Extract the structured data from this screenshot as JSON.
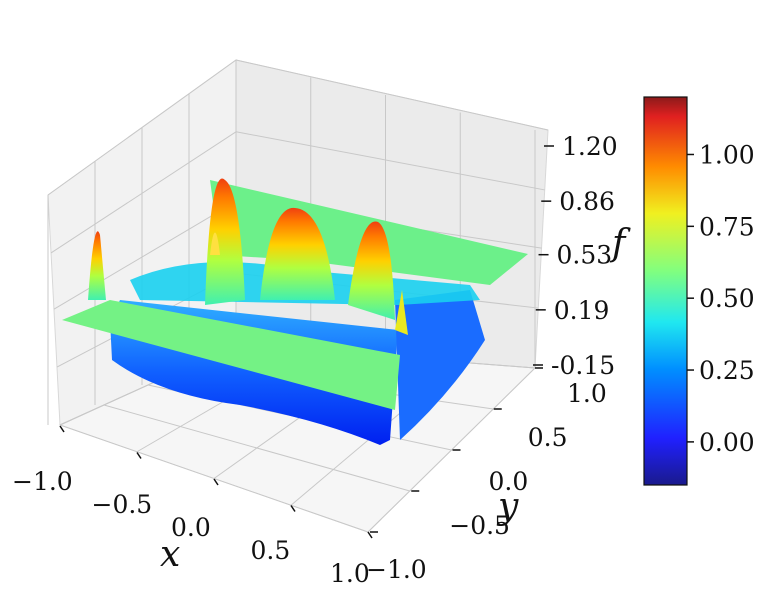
{
  "chart_data": {
    "type": "surface3d",
    "title": "",
    "xlabel": "x",
    "ylabel": "y",
    "zlabel": "f",
    "xlim": [
      -1.0,
      1.0
    ],
    "ylim": [
      -1.0,
      1.0
    ],
    "zlim": [
      -0.15,
      1.2
    ],
    "x_ticks": [
      "−1.0",
      "−0.5",
      "0.0",
      "0.5",
      "1.0"
    ],
    "y_ticks": [
      "−1.0",
      "−0.5",
      "0.0",
      "0.5",
      "1.0"
    ],
    "z_ticks": [
      "-0.15",
      "0.19",
      "0.53",
      "0.86",
      "1.20"
    ],
    "grid": true,
    "colormap": "jet",
    "colorbar": {
      "placement": "right",
      "range": [
        -0.15,
        1.2
      ],
      "ticks": [
        "0.00",
        "0.25",
        "0.50",
        "0.75",
        "1.00"
      ],
      "tick_values": [
        0.0,
        0.25,
        0.5,
        0.75,
        1.0
      ]
    },
    "peaks": [
      {
        "x": -0.9,
        "y": 0.1,
        "f": 0.9
      },
      {
        "x": -0.55,
        "y": 0.95,
        "f": 0.93
      },
      {
        "x": -0.4,
        "y": 0.65,
        "f": 1.2
      },
      {
        "x": -0.05,
        "y": 0.55,
        "f": 1.1
      },
      {
        "x": 0.3,
        "y": 0.4,
        "f": 1.05
      },
      {
        "x": 0.95,
        "y": -0.1,
        "f": 0.6
      }
    ]
  }
}
